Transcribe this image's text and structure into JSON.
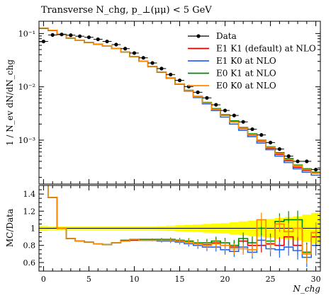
{
  "chart_data": [
    {
      "type": "line",
      "title": "Transverse N_chg, p_⊥(μμ) < 5 GeV",
      "ylabel": "1 / N_ev dN/dN_chg",
      "yscale": "log",
      "ylim": [
        0.00015,
        0.17
      ],
      "xlim": [
        -0.5,
        30.5
      ],
      "y_ticks": [
        {
          "value": 0.1,
          "label": "10⁻¹"
        },
        {
          "value": 0.01,
          "label": "10⁻²"
        },
        {
          "value": 0.001,
          "label": "10⁻³"
        }
      ],
      "legend_position": "top-right",
      "x": [
        0,
        1,
        2,
        3,
        4,
        5,
        6,
        7,
        8,
        9,
        10,
        11,
        12,
        13,
        14,
        15,
        16,
        17,
        18,
        19,
        20,
        21,
        22,
        23,
        24,
        25,
        26,
        27,
        28,
        29,
        30
      ],
      "series": [
        {
          "name": "Data",
          "style": "points",
          "color": "#000000",
          "values": [
            0.071,
            0.094,
            0.096,
            0.093,
            0.089,
            0.085,
            0.078,
            0.071,
            0.062,
            0.052,
            0.043,
            0.035,
            0.028,
            0.022,
            0.017,
            0.0132,
            0.0101,
            0.0079,
            0.0062,
            0.0046,
            0.0036,
            0.0029,
            0.0022,
            0.0016,
            0.00125,
            0.0009,
            0.00068,
            0.0005,
            0.0004,
            0.0004,
            0.00028
          ]
        },
        {
          "name": "E1 K1 (default) at NLO",
          "style": "hist",
          "color": "#dd0000",
          "values": [
            0.125,
            0.115,
            0.096,
            0.082,
            0.074,
            0.068,
            0.063,
            0.058,
            0.052,
            0.045,
            0.037,
            0.03,
            0.024,
            0.0188,
            0.0146,
            0.0112,
            0.0085,
            0.0065,
            0.005,
            0.0038,
            0.0029,
            0.0022,
            0.00165,
            0.00125,
            0.00095,
            0.0007,
            0.00054,
            0.00041,
            0.00031,
            0.00027,
            0.00024
          ]
        },
        {
          "name": "E1 K0 at NLO",
          "style": "hist",
          "color": "#2266ee",
          "values": [
            0.126,
            0.114,
            0.096,
            0.082,
            0.074,
            0.068,
            0.063,
            0.058,
            0.052,
            0.045,
            0.037,
            0.03,
            0.024,
            0.0187,
            0.0145,
            0.0111,
            0.0083,
            0.0063,
            0.0048,
            0.0036,
            0.0027,
            0.002,
            0.00153,
            0.00116,
            0.00088,
            0.00066,
            0.0005,
            0.00038,
            0.00029,
            0.00025,
            0.00022
          ]
        },
        {
          "name": "E0 K1 at NLO",
          "style": "hist",
          "color": "#008800",
          "values": [
            0.126,
            0.114,
            0.096,
            0.082,
            0.074,
            0.068,
            0.063,
            0.058,
            0.052,
            0.045,
            0.037,
            0.03,
            0.024,
            0.0189,
            0.0147,
            0.0113,
            0.0086,
            0.0066,
            0.0051,
            0.0039,
            0.003,
            0.0023,
            0.00172,
            0.00131,
            0.001,
            0.00075,
            0.00058,
            0.00045,
            0.00034,
            0.00029,
            0.00025
          ]
        },
        {
          "name": "E0 K0 at NLO",
          "style": "hist",
          "color": "#ff8800",
          "values": [
            0.127,
            0.115,
            0.097,
            0.083,
            0.074,
            0.068,
            0.063,
            0.058,
            0.052,
            0.045,
            0.037,
            0.03,
            0.024,
            0.0188,
            0.0146,
            0.0112,
            0.0085,
            0.0065,
            0.005,
            0.0038,
            0.0029,
            0.0022,
            0.00168,
            0.00128,
            0.00098,
            0.00073,
            0.00056,
            0.00043,
            0.00033,
            0.00028,
            0.00024
          ]
        }
      ]
    },
    {
      "type": "line",
      "ylabel": "MC/Data",
      "xlabel": "N_chg",
      "ylim": [
        0.5,
        1.5
      ],
      "xlim": [
        -0.5,
        30.5
      ],
      "x_ticks": [
        0,
        5,
        10,
        15,
        20,
        25,
        30
      ],
      "y_ticks": [
        0.6,
        0.8,
        1.0,
        1.2,
        1.4
      ],
      "y_tick_labels": [
        "0.6",
        "0.8",
        "1",
        "1.2",
        "1.4"
      ],
      "band": {
        "color": "#ffff00",
        "center": 1.0,
        "half_width": [
          0.03,
          0.02,
          0.02,
          0.02,
          0.02,
          0.02,
          0.02,
          0.02,
          0.02,
          0.02,
          0.02,
          0.02,
          0.02,
          0.025,
          0.03,
          0.035,
          0.04,
          0.045,
          0.05,
          0.055,
          0.06,
          0.07,
          0.08,
          0.09,
          0.1,
          0.11,
          0.12,
          0.13,
          0.14,
          0.16,
          0.18
        ]
      },
      "x": [
        0,
        1,
        2,
        3,
        4,
        5,
        6,
        7,
        8,
        9,
        10,
        11,
        12,
        13,
        14,
        15,
        16,
        17,
        18,
        19,
        20,
        21,
        22,
        23,
        24,
        25,
        26,
        27,
        28,
        29,
        30
      ],
      "series": [
        {
          "name": "E1 K1 (default) at NLO",
          "color": "#dd0000",
          "values": [
            1.76,
            1.36,
            1.0,
            0.88,
            0.85,
            0.84,
            0.82,
            0.81,
            0.83,
            0.85,
            0.86,
            0.86,
            0.86,
            0.86,
            0.86,
            0.85,
            0.84,
            0.82,
            0.81,
            0.83,
            0.8,
            0.78,
            0.85,
            0.8,
            0.8,
            0.82,
            0.8,
            0.9,
            0.8,
            0.72,
            0.9
          ]
        },
        {
          "name": "E1 K0 at NLO",
          "color": "#2266ee",
          "values": [
            1.77,
            1.36,
            1.0,
            0.88,
            0.85,
            0.84,
            0.82,
            0.81,
            0.83,
            0.85,
            0.87,
            0.86,
            0.86,
            0.85,
            0.85,
            0.84,
            0.82,
            0.8,
            0.78,
            0.78,
            0.75,
            0.73,
            0.78,
            0.72,
            0.86,
            0.76,
            0.75,
            0.78,
            0.74,
            0.66,
            0.8
          ]
        },
        {
          "name": "E0 K1 at NLO",
          "color": "#008800",
          "values": [
            1.77,
            1.36,
            1.0,
            0.88,
            0.85,
            0.84,
            0.82,
            0.81,
            0.83,
            0.86,
            0.87,
            0.87,
            0.87,
            0.87,
            0.87,
            0.86,
            0.85,
            0.83,
            0.83,
            0.85,
            0.83,
            0.8,
            0.88,
            0.83,
            1.0,
            0.85,
            1.08,
            1.1,
            1.1,
            0.72,
            0.95
          ]
        },
        {
          "name": "E0 K0 at NLO",
          "color": "#ff8800",
          "values": [
            1.78,
            1.36,
            1.0,
            0.88,
            0.85,
            0.84,
            0.82,
            0.81,
            0.83,
            0.85,
            0.87,
            0.86,
            0.86,
            0.86,
            0.86,
            0.85,
            0.84,
            0.82,
            0.8,
            0.82,
            0.8,
            0.76,
            0.76,
            0.75,
            1.1,
            0.81,
            1.05,
            0.96,
            1.0,
            0.7,
            0.95
          ]
        }
      ]
    }
  ],
  "legend": {
    "entries": [
      "Data",
      "E1 K1 (default) at NLO",
      "E1 K0 at NLO",
      "E0 K1 at NLO",
      "E0 K0 at NLO"
    ]
  }
}
